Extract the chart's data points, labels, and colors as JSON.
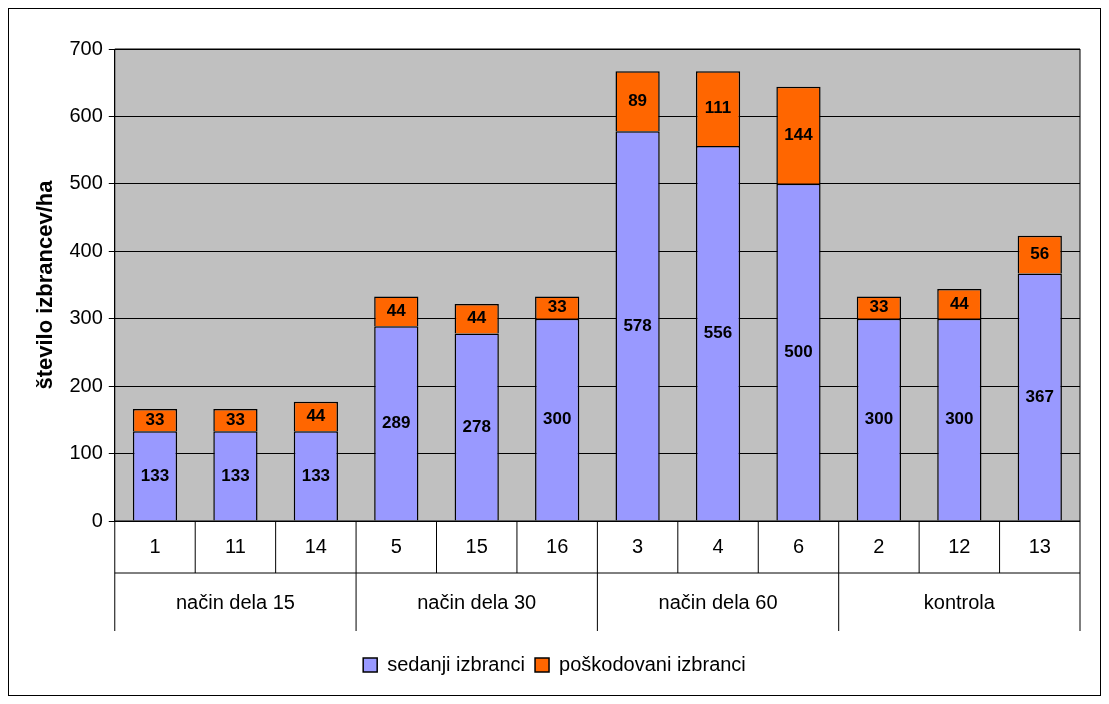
{
  "chart_data": {
    "type": "bar",
    "stacked": true,
    "ylabel": "število izbrancev/ha",
    "categories": [
      "1",
      "11",
      "14",
      "5",
      "15",
      "16",
      "3",
      "4",
      "6",
      "2",
      "12",
      "13"
    ],
    "series": [
      {
        "name": "sedanji izbranci",
        "color": "#9999ff",
        "values": [
          133,
          133,
          133,
          289,
          278,
          300,
          578,
          556,
          500,
          300,
          300,
          367
        ]
      },
      {
        "name": "poškodovani izbranci",
        "color": "#ff6600",
        "values": [
          33,
          33,
          44,
          44,
          44,
          33,
          89,
          111,
          144,
          33,
          44,
          56
        ]
      }
    ],
    "annotations": [
      "način dela 15",
      "način dela 30",
      "način dela 60",
      "kontrola"
    ],
    "ylim": [
      0,
      700
    ],
    "yticks": [
      0,
      100,
      200,
      300,
      400,
      500,
      600,
      700
    ],
    "grid": "y",
    "legend": "bottom",
    "data_labels": true
  }
}
